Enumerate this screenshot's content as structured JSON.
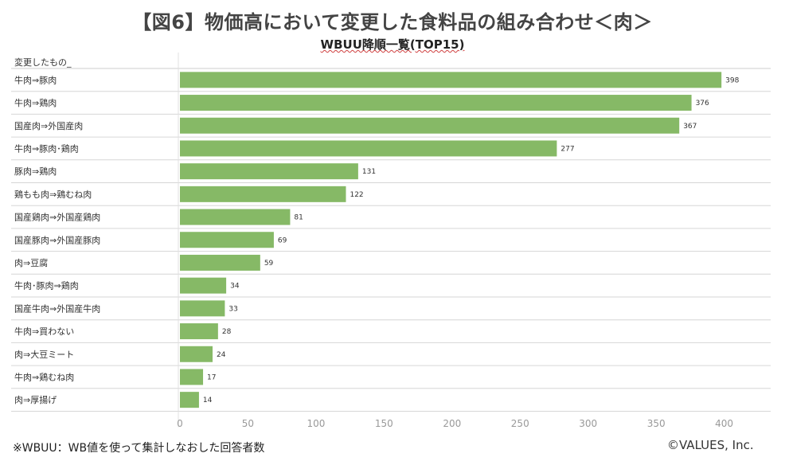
{
  "chart_data": {
    "type": "bar",
    "orientation": "horizontal",
    "title": "【図6】物価高において変更した食料品の組み合わせ＜肉＞",
    "subtitle": "WBUU降順一覧(TOP15)",
    "column_header": "変更したもの_",
    "categories": [
      "牛肉⇒豚肉",
      "牛肉⇒鶏肉",
      "国産肉⇒外国産肉",
      "牛肉⇒豚肉･鶏肉",
      "豚肉⇒鶏肉",
      "鶏もも肉⇒鶏むね肉",
      "国産鶏肉⇒外国産鶏肉",
      "国産豚肉⇒外国産豚肉",
      "肉⇒豆腐",
      "牛肉･豚肉⇒鶏肉",
      "国産牛肉⇒外国産牛肉",
      "牛肉⇒買わない",
      "肉⇒大豆ミート",
      "牛肉⇒鶏むね肉",
      "肉⇒厚揚げ"
    ],
    "values": [
      398,
      376,
      367,
      277,
      131,
      122,
      81,
      69,
      59,
      34,
      33,
      28,
      24,
      17,
      14
    ],
    "xlim": [
      0,
      450
    ],
    "xticks": [
      0,
      50,
      100,
      150,
      200,
      250,
      300,
      350,
      400
    ],
    "bar_color": "#86b966"
  },
  "footnote": "※WBUU：WB値を使って集計しなおした回答者数",
  "copyright": "©VALUES, Inc."
}
